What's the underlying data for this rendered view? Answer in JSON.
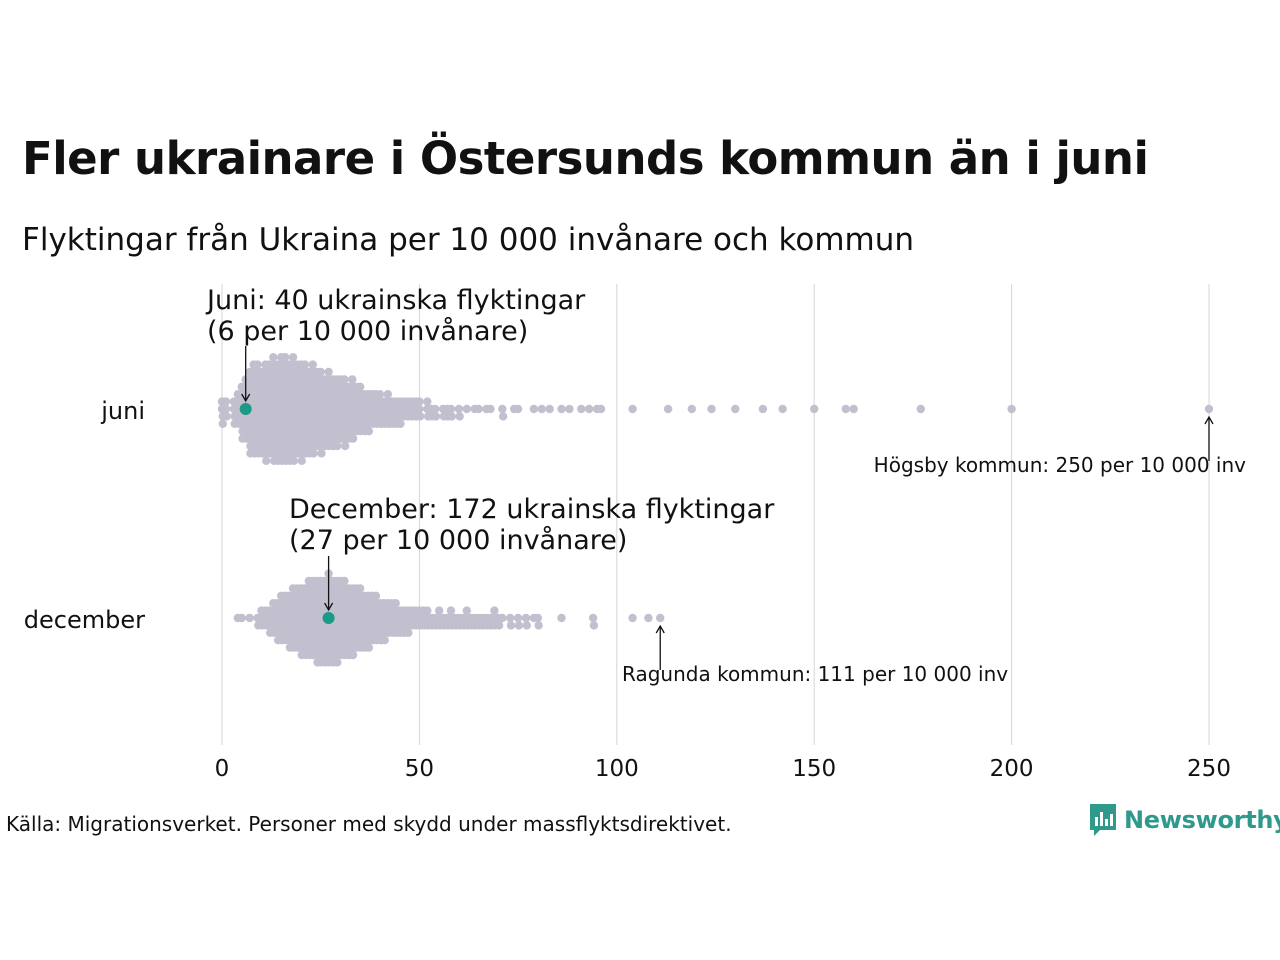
{
  "title": "Fler ukrainare i Östersunds kommun än i juni",
  "subtitle": "Flyktingar från Ukraina per 10 000 invånare och kommun",
  "source": "Källa: Migrationsverket. Personer med skydd under massflyktsdirektivet.",
  "logo": {
    "text": "Newsworthy",
    "icon": "bar-chart-speech-bubble-icon"
  },
  "colors": {
    "dot": "#c2c0cf",
    "highlight": "#1a9a87",
    "grid": "#d6d6d6",
    "text": "#111111",
    "logo": "#2f9a8b"
  },
  "chart_data": {
    "type": "scatter",
    "subtype": "beeswarm",
    "title": "Fler ukrainare i Östersunds kommun än i juni",
    "subtitle": "Flyktingar från Ukraina per 10 000 invånare och kommun",
    "xlabel": "",
    "ylabel": "",
    "xlim": [
      0,
      250
    ],
    "xticks": [
      0,
      50,
      100,
      150,
      200,
      250
    ],
    "grid": "vertical",
    "categories": [
      "juni",
      "december"
    ],
    "series": [
      {
        "category": "juni",
        "bins": [
          [
            0,
            4
          ],
          [
            1,
            3
          ],
          [
            3,
            4
          ],
          [
            4,
            5
          ],
          [
            5,
            8
          ],
          [
            6,
            9
          ],
          [
            7,
            12
          ],
          [
            8,
            13
          ],
          [
            9,
            13
          ],
          [
            10,
            12
          ],
          [
            11,
            14
          ],
          [
            12,
            13
          ],
          [
            13,
            15
          ],
          [
            14,
            14
          ],
          [
            15,
            15
          ],
          [
            16,
            15
          ],
          [
            17,
            14
          ],
          [
            18,
            15
          ],
          [
            19,
            13
          ],
          [
            20,
            14
          ],
          [
            21,
            13
          ],
          [
            22,
            12
          ],
          [
            23,
            13
          ],
          [
            24,
            11
          ],
          [
            25,
            12
          ],
          [
            26,
            10
          ],
          [
            27,
            11
          ],
          [
            28,
            10
          ],
          [
            29,
            10
          ],
          [
            30,
            9
          ],
          [
            31,
            10
          ],
          [
            32,
            8
          ],
          [
            33,
            9
          ],
          [
            34,
            7
          ],
          [
            35,
            7
          ],
          [
            36,
            6
          ],
          [
            37,
            6
          ],
          [
            38,
            5
          ],
          [
            39,
            5
          ],
          [
            40,
            5
          ],
          [
            41,
            4
          ],
          [
            42,
            5
          ],
          [
            43,
            4
          ],
          [
            44,
            4
          ],
          [
            45,
            4
          ],
          [
            46,
            3
          ],
          [
            47,
            3
          ],
          [
            48,
            3
          ],
          [
            49,
            3
          ],
          [
            50,
            3
          ],
          [
            52,
            3
          ],
          [
            53,
            2
          ],
          [
            54,
            2
          ],
          [
            56,
            2
          ],
          [
            57,
            2
          ],
          [
            58,
            2
          ],
          [
            60,
            2
          ],
          [
            62,
            1
          ],
          [
            64,
            1
          ],
          [
            65,
            1
          ],
          [
            67,
            1
          ],
          [
            68,
            1
          ],
          [
            71,
            2
          ],
          [
            74,
            1
          ],
          [
            75,
            1
          ],
          [
            79,
            1
          ],
          [
            81,
            1
          ],
          [
            83,
            1
          ],
          [
            86,
            1
          ],
          [
            88,
            1
          ],
          [
            91,
            1
          ],
          [
            93,
            1
          ],
          [
            95,
            1
          ],
          [
            96,
            1
          ],
          [
            104,
            1
          ],
          [
            113,
            1
          ],
          [
            119,
            1
          ],
          [
            124,
            1
          ],
          [
            130,
            1
          ],
          [
            137,
            1
          ],
          [
            142,
            1
          ],
          [
            150,
            1
          ],
          [
            158,
            1
          ],
          [
            160,
            1
          ],
          [
            177,
            1
          ],
          [
            200,
            1
          ],
          [
            250,
            1
          ]
        ],
        "highlight": {
          "name": "Östersund",
          "value": 6,
          "count": 40
        },
        "annotation": {
          "text_lines": [
            "Juni:  40 ukrainska flyktingar",
            "(6 per 10 000 invånare)"
          ]
        },
        "extreme": {
          "name": "Högsby kommun",
          "value": 250,
          "label": "Högsby kommun: 250 per 10 000 inv"
        }
      },
      {
        "category": "december",
        "bins": [
          [
            4,
            1
          ],
          [
            5,
            1
          ],
          [
            7,
            1
          ],
          [
            9,
            2
          ],
          [
            10,
            3
          ],
          [
            11,
            3
          ],
          [
            12,
            4
          ],
          [
            13,
            5
          ],
          [
            14,
            6
          ],
          [
            15,
            7
          ],
          [
            16,
            7
          ],
          [
            17,
            8
          ],
          [
            18,
            9
          ],
          [
            19,
            9
          ],
          [
            20,
            10
          ],
          [
            21,
            10
          ],
          [
            22,
            11
          ],
          [
            23,
            11
          ],
          [
            24,
            12
          ],
          [
            25,
            12
          ],
          [
            26,
            12
          ],
          [
            27,
            13
          ],
          [
            28,
            12
          ],
          [
            29,
            12
          ],
          [
            30,
            11
          ],
          [
            31,
            11
          ],
          [
            32,
            10
          ],
          [
            33,
            10
          ],
          [
            34,
            9
          ],
          [
            35,
            9
          ],
          [
            36,
            8
          ],
          [
            37,
            8
          ],
          [
            38,
            7
          ],
          [
            39,
            7
          ],
          [
            40,
            6
          ],
          [
            41,
            6
          ],
          [
            42,
            5
          ],
          [
            43,
            5
          ],
          [
            44,
            5
          ],
          [
            45,
            4
          ],
          [
            46,
            4
          ],
          [
            47,
            4
          ],
          [
            48,
            3
          ],
          [
            49,
            3
          ],
          [
            50,
            3
          ],
          [
            51,
            3
          ],
          [
            52,
            3
          ],
          [
            53,
            2
          ],
          [
            54,
            2
          ],
          [
            55,
            3
          ],
          [
            56,
            2
          ],
          [
            57,
            2
          ],
          [
            58,
            3
          ],
          [
            59,
            2
          ],
          [
            60,
            2
          ],
          [
            61,
            2
          ],
          [
            62,
            3
          ],
          [
            63,
            2
          ],
          [
            64,
            2
          ],
          [
            65,
            2
          ],
          [
            66,
            2
          ],
          [
            67,
            2
          ],
          [
            68,
            2
          ],
          [
            69,
            3
          ],
          [
            70,
            2
          ],
          [
            71,
            1
          ],
          [
            73,
            2
          ],
          [
            75,
            2
          ],
          [
            77,
            2
          ],
          [
            79,
            1
          ],
          [
            80,
            2
          ],
          [
            86,
            1
          ],
          [
            94,
            2
          ],
          [
            104,
            1
          ],
          [
            108,
            1
          ],
          [
            111,
            1
          ]
        ],
        "highlight": {
          "name": "Östersund",
          "value": 27,
          "count": 172
        },
        "annotation": {
          "text_lines": [
            "December: 172 ukrainska flyktingar",
            "(27 per 10 000 invånare)"
          ]
        },
        "extreme": {
          "name": "Ragunda kommun",
          "value": 111,
          "label": "Ragunda kommun: 111 per 10 000 inv"
        }
      }
    ]
  }
}
